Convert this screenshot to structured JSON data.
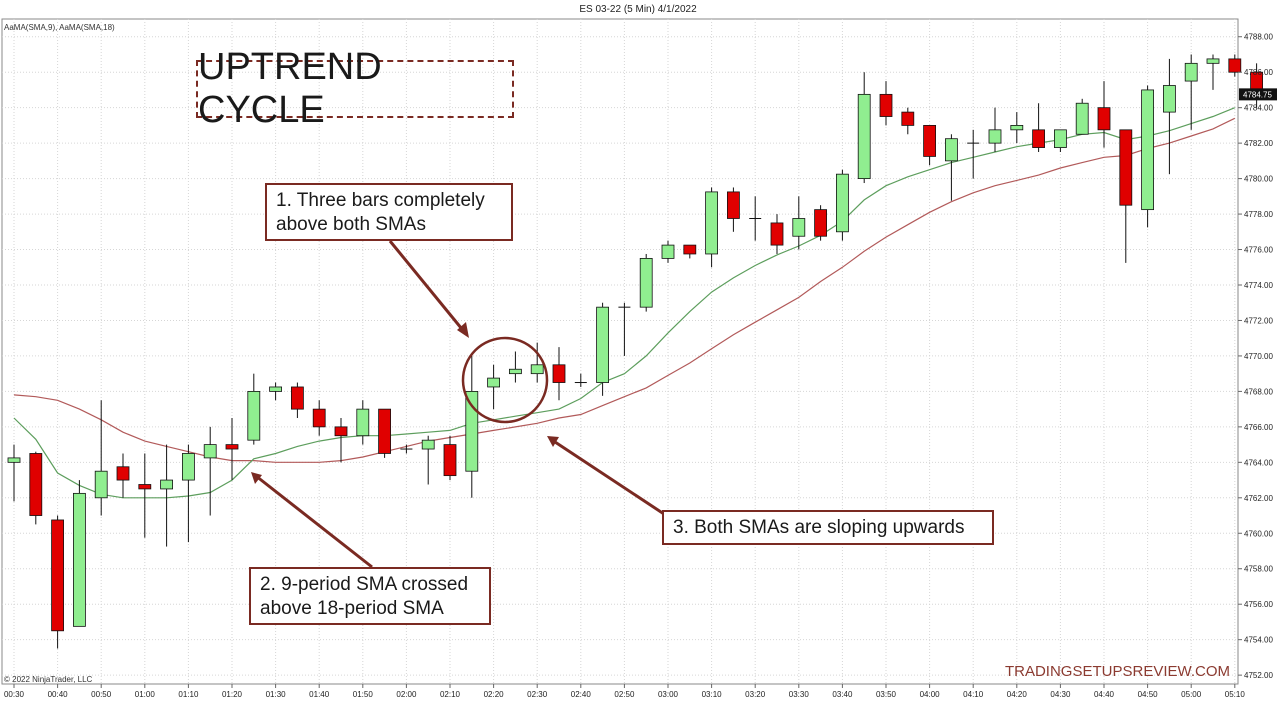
{
  "header": {
    "instrument_title": "ES 03-22 (5 Min)  4/1/2022",
    "indicator_legend": "AaMA(SMA,9), AaMA(SMA,18)"
  },
  "annotations": {
    "title": "UPTREND CYCLE",
    "note1": "1. Three bars completely above both SMAs",
    "note2": "2. 9-period SMA crossed above 18-period SMA",
    "note3": "3. Both SMAs are sloping upwards"
  },
  "footer": {
    "copyright": "© 2022 NinjaTrader, LLC",
    "watermark": "TRADINGSETUPSREVIEW.COM"
  },
  "colors": {
    "up": "#90ee90",
    "down": "#e00000",
    "sma9": "#5d9e5d",
    "sma18": "#b25a5a",
    "annotation": "#7a2a22"
  },
  "chart_data": {
    "type": "candlestick",
    "ylim": [
      4751.5,
      4789
    ],
    "y_ticks": [
      4752,
      4754,
      4756,
      4758,
      4760,
      4762,
      4764,
      4766,
      4768,
      4770,
      4772,
      4774,
      4776,
      4778,
      4780,
      4782,
      4784,
      4786,
      4788
    ],
    "y_tick_labels": [
      "4752.00",
      "4754.00",
      "4756.00",
      "4758.00",
      "4760.00",
      "4762.00",
      "4764.00",
      "4766.00",
      "4768.00",
      "4770.00",
      "4772.00",
      "4774.00",
      "4776.00",
      "4778.00",
      "4780.00",
      "4782.00",
      "4784.00",
      "4786.00",
      "4788.00"
    ],
    "x_tick_labels": [
      "00:30",
      "00:40",
      "00:50",
      "01:00",
      "01:10",
      "01:20",
      "01:30",
      "01:40",
      "01:50",
      "02:00",
      "02:10",
      "02:20",
      "02:30",
      "02:40",
      "02:50",
      "03:00",
      "03:10",
      "03:20",
      "03:30",
      "03:40",
      "03:50",
      "04:00",
      "04:10",
      "04:20",
      "04:30",
      "04:40",
      "04:50",
      "05:00",
      "05:10"
    ],
    "last_price_label": "4784.75",
    "candles": [
      {
        "o": 4764.0,
        "h": 4765.0,
        "l": 4761.8,
        "c": 4764.25
      },
      {
        "o": 4764.5,
        "h": 4764.6,
        "l": 4760.5,
        "c": 4761.0
      },
      {
        "o": 4760.75,
        "h": 4761.0,
        "l": 4753.5,
        "c": 4754.5
      },
      {
        "o": 4754.75,
        "h": 4763.0,
        "l": 4754.75,
        "c": 4762.25
      },
      {
        "o": 4762.0,
        "h": 4767.5,
        "l": 4761.0,
        "c": 4763.5
      },
      {
        "o": 4763.75,
        "h": 4764.5,
        "l": 4762.0,
        "c": 4763.0
      },
      {
        "o": 4762.75,
        "h": 4764.5,
        "l": 4759.75,
        "c": 4762.5
      },
      {
        "o": 4762.5,
        "h": 4765.0,
        "l": 4759.25,
        "c": 4763.0
      },
      {
        "o": 4763.0,
        "h": 4765.0,
        "l": 4759.5,
        "c": 4764.5
      },
      {
        "o": 4764.25,
        "h": 4766.0,
        "l": 4761.0,
        "c": 4765.0
      },
      {
        "o": 4765.0,
        "h": 4766.5,
        "l": 4763.0,
        "c": 4764.75
      },
      {
        "o": 4765.25,
        "h": 4769.0,
        "l": 4765.0,
        "c": 4768.0
      },
      {
        "o": 4768.0,
        "h": 4768.5,
        "l": 4767.5,
        "c": 4768.25
      },
      {
        "o": 4768.25,
        "h": 4768.5,
        "l": 4766.5,
        "c": 4767.0
      },
      {
        "o": 4767.0,
        "h": 4767.5,
        "l": 4765.5,
        "c": 4766.0
      },
      {
        "o": 4766.0,
        "h": 4766.5,
        "l": 4764.0,
        "c": 4765.5
      },
      {
        "o": 4765.5,
        "h": 4767.5,
        "l": 4765.0,
        "c": 4767.0
      },
      {
        "o": 4767.0,
        "h": 4767.0,
        "l": 4764.25,
        "c": 4764.5
      },
      {
        "o": 4764.75,
        "h": 4765.0,
        "l": 4764.5,
        "c": 4764.75
      },
      {
        "o": 4764.75,
        "h": 4765.5,
        "l": 4762.75,
        "c": 4765.25
      },
      {
        "o": 4765.0,
        "h": 4765.5,
        "l": 4763.0,
        "c": 4763.25
      },
      {
        "o": 4763.5,
        "h": 4770.0,
        "l": 4762.0,
        "c": 4768.0
      },
      {
        "o": 4768.25,
        "h": 4769.5,
        "l": 4767.0,
        "c": 4768.75
      },
      {
        "o": 4769.0,
        "h": 4770.25,
        "l": 4768.5,
        "c": 4769.25
      },
      {
        "o": 4769.0,
        "h": 4770.75,
        "l": 4768.5,
        "c": 4769.5
      },
      {
        "o": 4769.5,
        "h": 4770.5,
        "l": 4767.5,
        "c": 4768.5
      },
      {
        "o": 4768.5,
        "h": 4769.0,
        "l": 4768.25,
        "c": 4768.5
      },
      {
        "o": 4768.5,
        "h": 4773.0,
        "l": 4767.75,
        "c": 4772.75
      },
      {
        "o": 4772.75,
        "h": 4773.0,
        "l": 4770.0,
        "c": 4772.75
      },
      {
        "o": 4772.75,
        "h": 4775.75,
        "l": 4772.5,
        "c": 4775.5
      },
      {
        "o": 4775.5,
        "h": 4776.5,
        "l": 4775.25,
        "c": 4776.25
      },
      {
        "o": 4776.25,
        "h": 4776.25,
        "l": 4775.5,
        "c": 4775.75
      },
      {
        "o": 4775.75,
        "h": 4779.5,
        "l": 4775.0,
        "c": 4779.25
      },
      {
        "o": 4779.25,
        "h": 4779.5,
        "l": 4777.0,
        "c": 4777.75
      },
      {
        "o": 4777.75,
        "h": 4779.0,
        "l": 4776.5,
        "c": 4777.75
      },
      {
        "o": 4777.5,
        "h": 4778.0,
        "l": 4775.75,
        "c": 4776.25
      },
      {
        "o": 4776.75,
        "h": 4779.0,
        "l": 4776.0,
        "c": 4777.75
      },
      {
        "o": 4778.25,
        "h": 4778.5,
        "l": 4776.5,
        "c": 4776.75
      },
      {
        "o": 4777.0,
        "h": 4780.5,
        "l": 4776.5,
        "c": 4780.25
      },
      {
        "o": 4780.0,
        "h": 4786.0,
        "l": 4779.75,
        "c": 4784.75
      },
      {
        "o": 4784.75,
        "h": 4785.5,
        "l": 4783.0,
        "c": 4783.5
      },
      {
        "o": 4783.75,
        "h": 4784.0,
        "l": 4782.5,
        "c": 4783.0
      },
      {
        "o": 4783.0,
        "h": 4783.0,
        "l": 4780.75,
        "c": 4781.25
      },
      {
        "o": 4781.0,
        "h": 4782.5,
        "l": 4778.75,
        "c": 4782.25
      },
      {
        "o": 4782.0,
        "h": 4782.75,
        "l": 4780.0,
        "c": 4782.0
      },
      {
        "o": 4782.0,
        "h": 4784.0,
        "l": 4781.5,
        "c": 4782.75
      },
      {
        "o": 4782.75,
        "h": 4783.75,
        "l": 4782.0,
        "c": 4783.0
      },
      {
        "o": 4782.75,
        "h": 4784.25,
        "l": 4781.5,
        "c": 4781.75
      },
      {
        "o": 4781.75,
        "h": 4782.75,
        "l": 4781.5,
        "c": 4782.75
      },
      {
        "o": 4782.5,
        "h": 4784.5,
        "l": 4782.5,
        "c": 4784.25
      },
      {
        "o": 4784.0,
        "h": 4785.5,
        "l": 4781.75,
        "c": 4782.75
      },
      {
        "o": 4782.75,
        "h": 4782.75,
        "l": 4775.25,
        "c": 4778.5
      },
      {
        "o": 4778.25,
        "h": 4785.25,
        "l": 4777.25,
        "c": 4785.0
      },
      {
        "o": 4783.75,
        "h": 4786.75,
        "l": 4780.25,
        "c": 4785.25
      },
      {
        "o": 4785.5,
        "h": 4787.0,
        "l": 4782.75,
        "c": 4786.5
      },
      {
        "o": 4786.5,
        "h": 4787.0,
        "l": 4785.0,
        "c": 4786.75
      },
      {
        "o": 4786.75,
        "h": 4787.0,
        "l": 4785.75,
        "c": 4786.0
      },
      {
        "o": 4786.0,
        "h": 4786.5,
        "l": 4784.0,
        "c": 4784.75
      }
    ],
    "sma9": [
      [
        0,
        4766.5
      ],
      [
        1,
        4765.3
      ],
      [
        2,
        4763.4
      ],
      [
        3,
        4762.7
      ],
      [
        4,
        4762.2
      ],
      [
        5,
        4762.0
      ],
      [
        6,
        4762.0
      ],
      [
        7,
        4762.0
      ],
      [
        8,
        4762.1
      ],
      [
        9,
        4762.3
      ],
      [
        10,
        4763.0
      ],
      [
        11,
        4764.2
      ],
      [
        12,
        4764.5
      ],
      [
        13,
        4764.9
      ],
      [
        14,
        4765.2
      ],
      [
        15,
        4765.4
      ],
      [
        16,
        4765.5
      ],
      [
        17,
        4765.5
      ],
      [
        18,
        4765.6
      ],
      [
        19,
        4765.7
      ],
      [
        20,
        4765.8
      ],
      [
        21,
        4766.2
      ],
      [
        22,
        4766.4
      ],
      [
        23,
        4766.6
      ],
      [
        24,
        4766.8
      ],
      [
        25,
        4767.0
      ],
      [
        26,
        4767.6
      ],
      [
        27,
        4768.5
      ],
      [
        28,
        4769.0
      ],
      [
        29,
        4770.0
      ],
      [
        30,
        4771.3
      ],
      [
        31,
        4772.5
      ],
      [
        32,
        4773.6
      ],
      [
        33,
        4774.4
      ],
      [
        34,
        4775.1
      ],
      [
        35,
        4775.7
      ],
      [
        36,
        4776.2
      ],
      [
        37,
        4776.8
      ],
      [
        38,
        4777.6
      ],
      [
        39,
        4778.8
      ],
      [
        40,
        4779.6
      ],
      [
        41,
        4780.1
      ],
      [
        42,
        4780.5
      ],
      [
        43,
        4780.9
      ],
      [
        44,
        4781.2
      ],
      [
        45,
        4781.5
      ],
      [
        46,
        4781.8
      ],
      [
        47,
        4782.0
      ],
      [
        48,
        4782.2
      ],
      [
        49,
        4782.5
      ],
      [
        50,
        4782.6
      ],
      [
        51,
        4782.2
      ],
      [
        52,
        4782.4
      ],
      [
        53,
        4782.7
      ],
      [
        54,
        4783.1
      ],
      [
        55,
        4783.5
      ],
      [
        56,
        4784.0
      ]
    ],
    "sma18": [
      [
        0,
        4767.8
      ],
      [
        1,
        4767.7
      ],
      [
        2,
        4767.5
      ],
      [
        3,
        4767.0
      ],
      [
        4,
        4766.4
      ],
      [
        5,
        4765.7
      ],
      [
        6,
        4765.2
      ],
      [
        7,
        4764.9
      ],
      [
        8,
        4764.6
      ],
      [
        9,
        4764.3
      ],
      [
        10,
        4764.1
      ],
      [
        11,
        4764.1
      ],
      [
        12,
        4764.0
      ],
      [
        13,
        4764.0
      ],
      [
        14,
        4764.0
      ],
      [
        15,
        4764.1
      ],
      [
        16,
        4764.3
      ],
      [
        17,
        4764.6
      ],
      [
        18,
        4764.9
      ],
      [
        19,
        4765.2
      ],
      [
        20,
        4765.4
      ],
      [
        21,
        4765.6
      ],
      [
        22,
        4765.8
      ],
      [
        23,
        4766.0
      ],
      [
        24,
        4766.2
      ],
      [
        25,
        4766.5
      ],
      [
        26,
        4766.7
      ],
      [
        27,
        4767.2
      ],
      [
        28,
        4767.7
      ],
      [
        29,
        4768.2
      ],
      [
        30,
        4768.9
      ],
      [
        31,
        4769.6
      ],
      [
        32,
        4770.4
      ],
      [
        33,
        4771.2
      ],
      [
        34,
        4771.9
      ],
      [
        35,
        4772.6
      ],
      [
        36,
        4773.3
      ],
      [
        37,
        4774.2
      ],
      [
        38,
        4775.0
      ],
      [
        39,
        4775.9
      ],
      [
        40,
        4776.7
      ],
      [
        41,
        4777.4
      ],
      [
        42,
        4778.1
      ],
      [
        43,
        4778.7
      ],
      [
        44,
        4779.2
      ],
      [
        45,
        4779.6
      ],
      [
        46,
        4779.9
      ],
      [
        47,
        4780.2
      ],
      [
        48,
        4780.6
      ],
      [
        49,
        4780.9
      ],
      [
        50,
        4781.2
      ],
      [
        51,
        4781.3
      ],
      [
        52,
        4781.7
      ],
      [
        53,
        4782.0
      ],
      [
        54,
        4782.4
      ],
      [
        55,
        4782.8
      ],
      [
        56,
        4783.4
      ]
    ]
  }
}
